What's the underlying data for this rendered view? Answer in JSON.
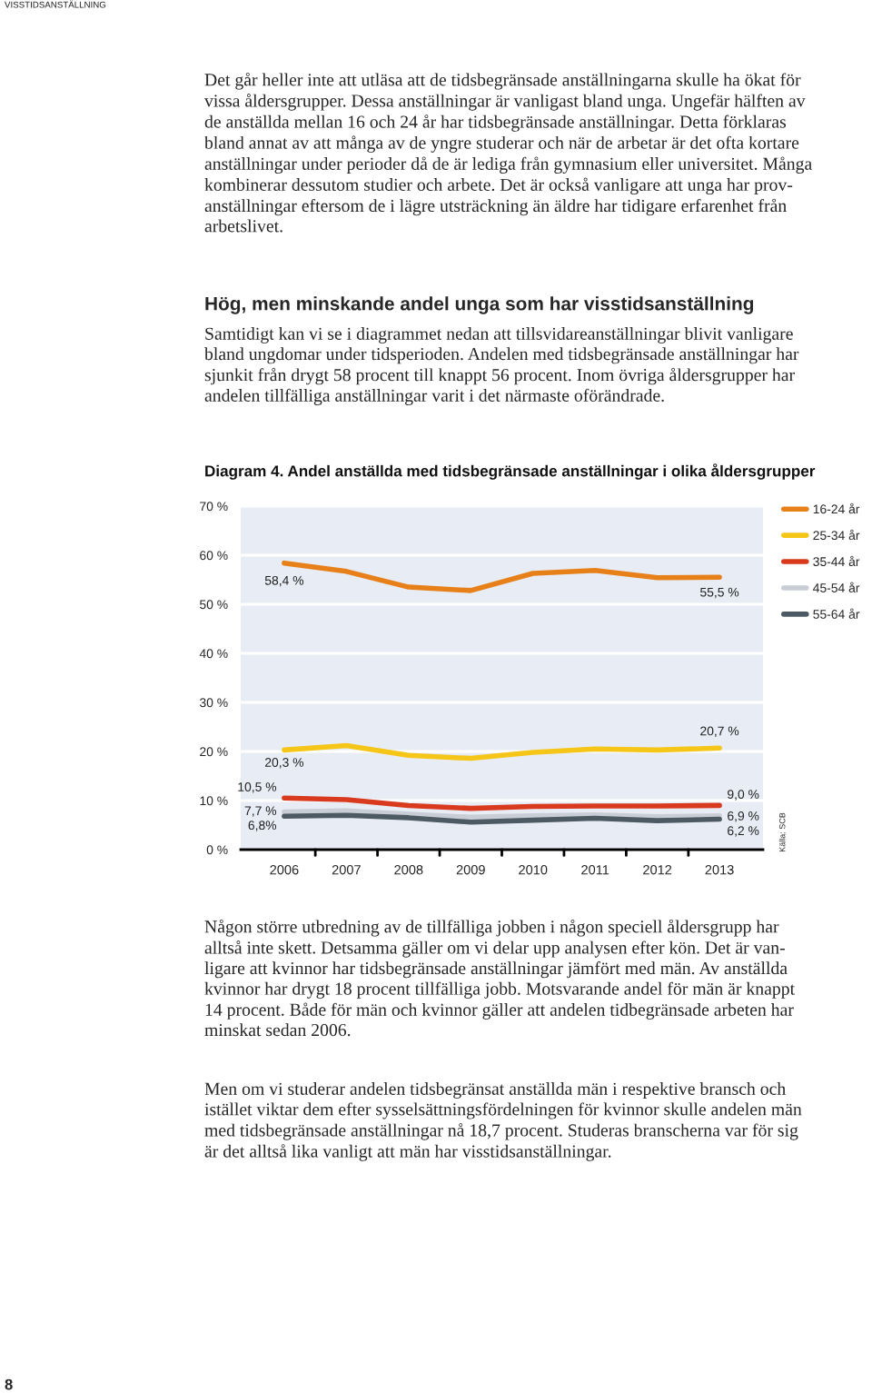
{
  "chart_data": {
    "type": "line",
    "title": "Diagram 4. Andel anställda med tidsbegränsade anställningar i olika åldersgrupper",
    "categories": [
      "2006",
      "2007",
      "2008",
      "2009",
      "2010",
      "2011",
      "2012",
      "2013"
    ],
    "series": [
      {
        "name": "16-24 år",
        "color": "#e8801a",
        "values": [
          58.4,
          56.7,
          53.5,
          52.8,
          56.3,
          56.9,
          55.4,
          55.5
        ],
        "value_labels": [
          "58,4 %",
          null,
          null,
          null,
          null,
          null,
          null,
          "55,5 %"
        ]
      },
      {
        "name": "25-34 år",
        "color": "#f5c518",
        "values": [
          20.3,
          21.2,
          19.2,
          18.6,
          19.8,
          20.5,
          20.3,
          20.7
        ],
        "value_labels": [
          "20,3 %",
          null,
          null,
          null,
          null,
          null,
          null,
          "20,7 %"
        ]
      },
      {
        "name": "35-44 år",
        "color": "#d93a1e",
        "values": [
          10.5,
          10.2,
          9.0,
          8.4,
          8.8,
          8.9,
          8.9,
          9.0
        ],
        "value_labels": [
          "10,5 %",
          null,
          null,
          null,
          null,
          null,
          null,
          "9,0 %"
        ]
      },
      {
        "name": "45-54 år",
        "color": "#c9ced6",
        "values": [
          7.7,
          7.9,
          7.2,
          6.6,
          6.9,
          7.1,
          6.7,
          6.9
        ],
        "value_labels": [
          "7,7 %",
          null,
          null,
          null,
          null,
          null,
          null,
          "6,9 %"
        ]
      },
      {
        "name": "55-64 år",
        "color": "#4d5a63",
        "values": [
          6.8,
          7.0,
          6.5,
          5.6,
          6.0,
          6.4,
          5.9,
          6.2
        ],
        "value_labels": [
          "6,8%",
          null,
          null,
          null,
          null,
          null,
          null,
          "6,2 %"
        ]
      }
    ],
    "ylim": [
      0,
      70
    ],
    "yticks": [
      {
        "value": 0,
        "label": "0 %"
      },
      {
        "value": 10,
        "label": "10 %"
      },
      {
        "value": 20,
        "label": "20 %"
      },
      {
        "value": 30,
        "label": "30 %"
      },
      {
        "value": 40,
        "label": "40 %"
      },
      {
        "value": 50,
        "label": "50 %"
      },
      {
        "value": 60,
        "label": "60 %"
      },
      {
        "value": 70,
        "label": "70 %"
      }
    ],
    "grid": "y",
    "legend": "right",
    "marker": "none",
    "line_style": "solid",
    "annotations": [
      "VISSTIDSANSTÄLLNING",
      "Det går heller inte att utläsa att de tidsbegränsade anställningarna skulle ha ökat för\nvissa åldersgrupper. Dessa anställningar är vanligast bland unga. Ungefär hälften av\nde anställda mellan 16 och 24 år har tidsbegränsade anställningar. Detta förklaras\nbland annat av att många av de yngre studerar och när de arbetar är det ofta kortare\nanställningar under perioder då de är lediga från gymnasium eller universitet. Många\nkombinerar dessutom studier och arbete. Det är också vanligare att unga har prov-\nanställningar eftersom de i lägre utsträckning än äldre har tidigare erfarenhet från\narbetslivet.",
      "Hög, men minskande andel unga som har visstidsanställning",
      "Samtidigt kan vi se i diagrammet nedan att tillsvidareanställningar blivit vanligare\nbland ungdomar under tidsperioden. Andelen med tidsbegränsade anställningar har\nsjunkit från drygt 58 procent till knappt 56 procent. Inom övriga åldersgrupper har\nandelen tillfälliga anställningar varit i det närmaste oförändrade.",
      "Källa: SCB",
      "Någon större utbredning av de tillfälliga jobben i någon speciell åldersgrupp har\nalltså inte skett. Detsamma gäller om vi delar upp analysen efter kön. Det är van-\nligare att kvinnor har tidsbegränsade anställningar jämfört med män. Av anställda\nkvinnor har drygt 18 procent tillfälliga jobb. Motsvarande andel för män är knappt\n14 procent. Både för män och kvinnor gäller att andelen tidbegränsade arbeten har\nminskat sedan 2006.",
      "Men om vi studerar andelen tidsbegränsat anställda män i respektive bransch och\nistället viktar dem efter sysselsättningsfördelningen för kvinnor skulle andelen män\nmed tidsbegränsade anställningar nå 18,7 procent. Studeras branscherna var för sig\när det alltså lika vanligt att män har visstidsanställningar.",
      "8"
    ]
  }
}
